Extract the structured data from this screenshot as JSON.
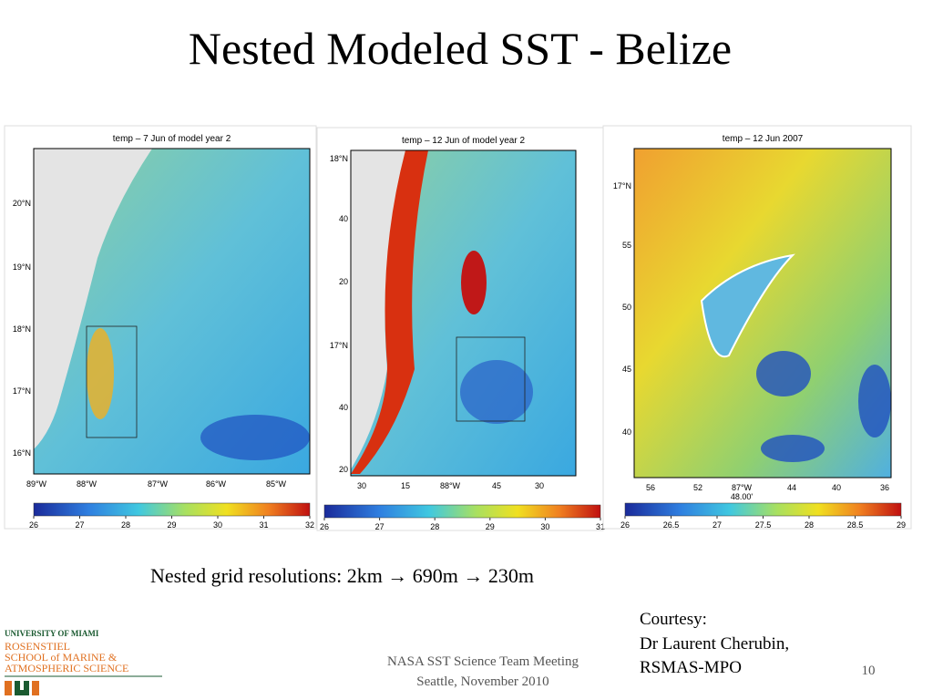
{
  "title": "Nested Modeled SST - Belize",
  "panels": [
    {
      "title": "temp – 7 Jun of model year 2",
      "lat_labels": [
        "20°N",
        "19°N",
        "18°N",
        "17°N",
        "16°N"
      ],
      "lon_labels": [
        "89°W",
        "88°W",
        "87°W",
        "86°W",
        "85°W"
      ],
      "colorbar_ticks": [
        26,
        27,
        28,
        29,
        30,
        31,
        32
      ]
    },
    {
      "title": "temp – 12 Jun of model year 2",
      "lat_labels": [
        "18°N",
        "40",
        "20",
        "17°N",
        "40",
        "20"
      ],
      "lon_labels": [
        "30",
        "15",
        "88°W",
        "45",
        "30"
      ],
      "colorbar_ticks": [
        26,
        27,
        28,
        29,
        30,
        31
      ]
    },
    {
      "title": "temp – 12 Jun 2007",
      "lat_labels": [
        "17°N",
        "55",
        "50",
        "45",
        "40"
      ],
      "lon_labels": [
        "56",
        "52",
        "87°W",
        "44",
        "40",
        "36"
      ],
      "lon_note": "48.00'",
      "colorbar_ticks": [
        26,
        26.5,
        27,
        27.5,
        28,
        28.5,
        29
      ]
    }
  ],
  "caption": "Nested grid resolutions:  2km →  690m → 230m",
  "courtesy": [
    "Courtesy:",
    "Dr Laurent Cherubin,",
    "RSMAS-MPO"
  ],
  "footer": [
    "NASA SST Science Team Meeting",
    "Seattle, November 2010"
  ],
  "page_number": "10",
  "logo": [
    "UNIVERSITY OF MIAMI",
    "ROSENSTIEL",
    "SCHOOL of MARINE &",
    "ATMOSPHERIC SCIENCE"
  ]
}
